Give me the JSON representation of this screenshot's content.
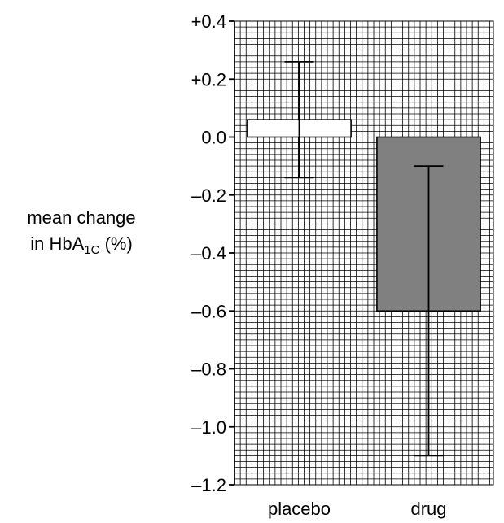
{
  "chart_data": {
    "type": "bar",
    "ylabel_line1": "mean change",
    "ylabel_line2_prefix": "in HbA",
    "ylabel_line2_sub": "1C",
    "ylabel_line2_suffix": " (%)",
    "ylim": [
      -1.2,
      0.4
    ],
    "y_ticks": [
      "+0.4",
      "+0.2",
      "0.0",
      "–0.2",
      "–0.4",
      "–0.6",
      "–0.8",
      "–1.0",
      "–1.2"
    ],
    "y_tick_values": [
      0.4,
      0.2,
      0.0,
      -0.2,
      -0.4,
      -0.6,
      -0.8,
      -1.0,
      -1.2
    ],
    "categories": [
      "placebo",
      "drug"
    ],
    "values": [
      0.06,
      -0.6
    ],
    "error_low": [
      -0.14,
      -1.1
    ],
    "error_high": [
      0.26,
      -0.1
    ],
    "bar_colors": [
      "#ffffff",
      "#808080"
    ],
    "grid": true,
    "minor_grid_step": 0.02
  }
}
